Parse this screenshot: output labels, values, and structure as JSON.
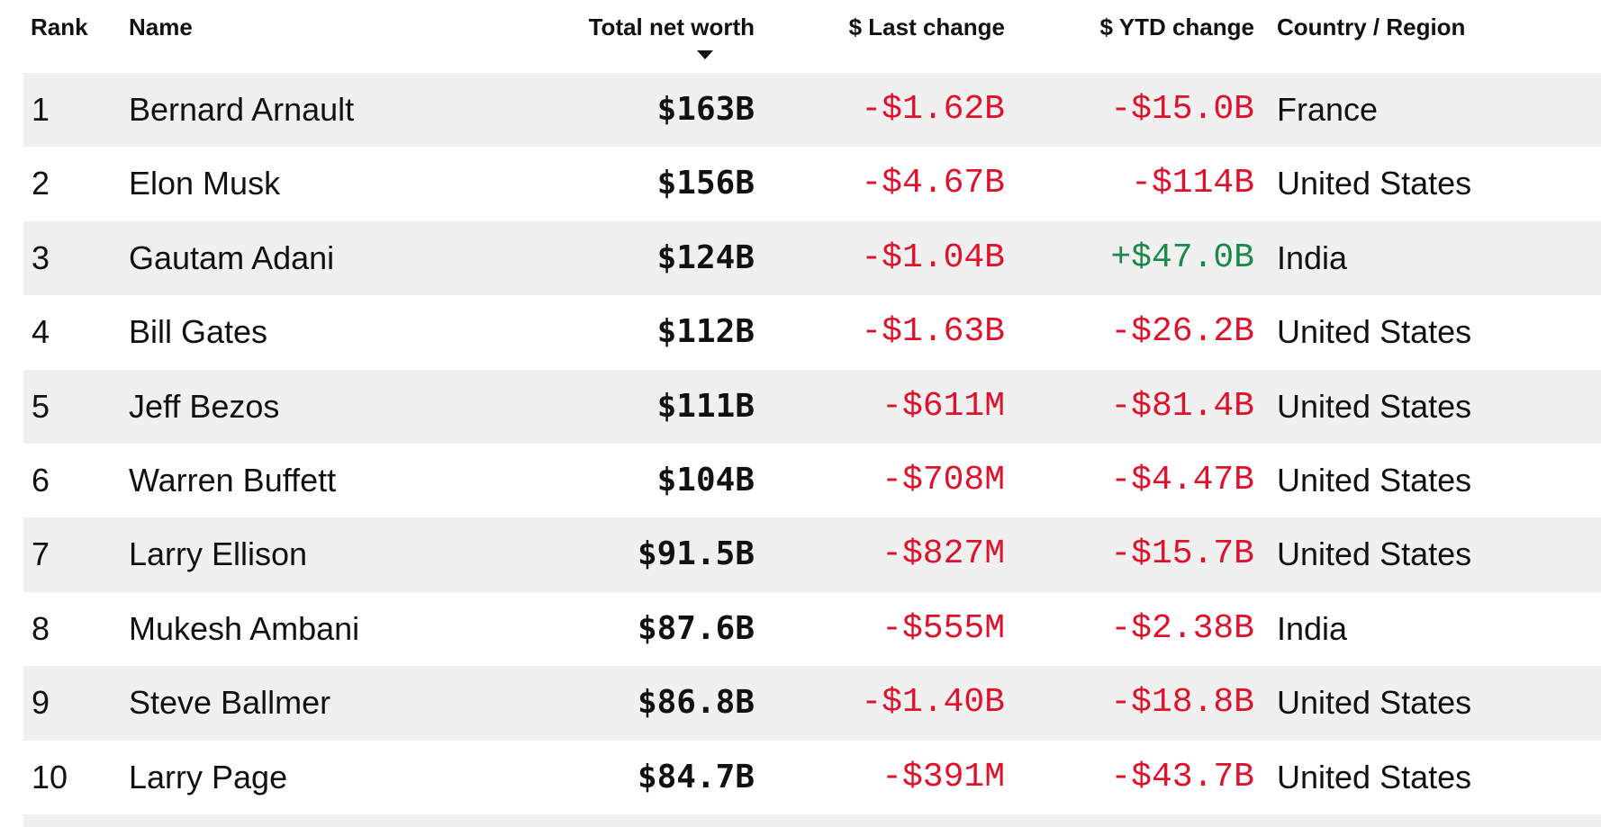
{
  "headers": {
    "rank": "Rank",
    "name": "Name",
    "net_worth": "Total net worth",
    "last_change": "$ Last change",
    "ytd_change": "$ YTD change",
    "country": "Country / Region"
  },
  "sort": {
    "column": "net_worth",
    "direction": "descending",
    "icon": "sort-down-icon"
  },
  "colors": {
    "negative": "#e0112b",
    "positive": "#1a8a4a",
    "stripe": "#f0f0f0"
  },
  "rows": [
    {
      "rank": "1",
      "name": "Bernard Arnault",
      "net_worth": "$163B",
      "last_change": "-$1.62B",
      "ytd_change": "-$15.0B",
      "country": "France"
    },
    {
      "rank": "2",
      "name": "Elon Musk",
      "net_worth": "$156B",
      "last_change": "-$4.67B",
      "ytd_change": "-$114B",
      "country": "United States"
    },
    {
      "rank": "3",
      "name": "Gautam Adani",
      "net_worth": "$124B",
      "last_change": "-$1.04B",
      "ytd_change": "+$47.0B",
      "country": "India"
    },
    {
      "rank": "4",
      "name": "Bill Gates",
      "net_worth": "$112B",
      "last_change": "-$1.63B",
      "ytd_change": "-$26.2B",
      "country": "United States"
    },
    {
      "rank": "5",
      "name": "Jeff Bezos",
      "net_worth": "$111B",
      "last_change": "-$611M",
      "ytd_change": "-$81.4B",
      "country": "United States"
    },
    {
      "rank": "6",
      "name": "Warren Buffett",
      "net_worth": "$104B",
      "last_change": "-$708M",
      "ytd_change": "-$4.47B",
      "country": "United States"
    },
    {
      "rank": "7",
      "name": "Larry Ellison",
      "net_worth": "$91.5B",
      "last_change": "-$827M",
      "ytd_change": "-$15.7B",
      "country": "United States"
    },
    {
      "rank": "8",
      "name": "Mukesh Ambani",
      "net_worth": "$87.6B",
      "last_change": "-$555M",
      "ytd_change": "-$2.38B",
      "country": "India"
    },
    {
      "rank": "9",
      "name": "Steve Ballmer",
      "net_worth": "$86.8B",
      "last_change": "-$1.40B",
      "ytd_change": "-$18.8B",
      "country": "United States"
    },
    {
      "rank": "10",
      "name": "Larry Page",
      "net_worth": "$84.7B",
      "last_change": "-$391M",
      "ytd_change": "-$43.7B",
      "country": "United States"
    }
  ]
}
